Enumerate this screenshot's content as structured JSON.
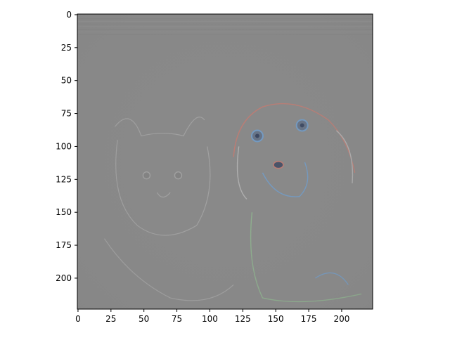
{
  "chart_data": {
    "type": "heatmap",
    "title": "",
    "xlabel": "",
    "ylabel": "",
    "xlim": [
      -0.5,
      223.5
    ],
    "ylim": [
      223.5,
      -0.5
    ],
    "xticks": [
      0,
      25,
      50,
      75,
      100,
      125,
      150,
      175,
      200
    ],
    "yticks": [
      0,
      25,
      50,
      75,
      100,
      125,
      150,
      175,
      200
    ],
    "image_size": [
      224,
      224
    ],
    "background_value_color": "#898989",
    "annotations": [],
    "grid": false,
    "legend": "none",
    "depiction": {
      "dog": {
        "center": [
          160,
          120
        ],
        "eyes": [
          [
            136,
            92
          ],
          [
            170,
            84
          ]
        ],
        "nose": [
          152,
          114
        ]
      },
      "cat": {
        "center": [
          60,
          125
        ],
        "eyes": [
          [
            52,
            122
          ],
          [
            76,
            122
          ]
        ]
      }
    }
  },
  "colors": {
    "axes_edge": "#000000",
    "tick_text": "#000000",
    "image_gray": "#898989",
    "edge_light": "#b7b7b7",
    "edge_blue": "#6f9fd0",
    "edge_red": "#c87a70",
    "edge_green": "#8fb98f"
  }
}
